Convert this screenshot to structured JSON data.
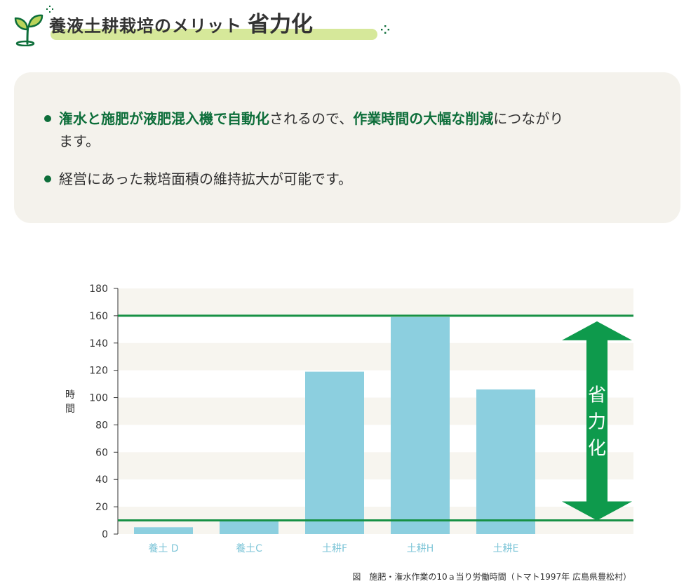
{
  "header": {
    "title": "養液土耕栽培のメリット",
    "subtitle": "省力化",
    "icon": "sprout-icon",
    "accent_color": "#0d6e3a",
    "highlight_color": "#d6e89a"
  },
  "info": {
    "items": [
      {
        "parts": [
          {
            "text": "潅水と施肥が液肥混入機で自動化",
            "highlight": true
          },
          {
            "text": "されるので、",
            "highlight": false
          },
          {
            "text": "作業時間の大幅な削減",
            "highlight": true
          },
          {
            "text": "につながります。",
            "highlight": false
          }
        ]
      },
      {
        "parts": [
          {
            "text": "経営にあった栽培面積の維持拡大が可能です。",
            "highlight": false
          }
        ]
      }
    ]
  },
  "chart_data": {
    "type": "bar",
    "categories": [
      "養土 D",
      "養土C",
      "土耕F",
      "土耕H",
      "土耕E"
    ],
    "values": [
      5,
      10,
      119,
      159,
      106
    ],
    "ylabel": "時間",
    "ylim": [
      0,
      180
    ],
    "yticks": [
      0,
      20,
      40,
      60,
      80,
      100,
      120,
      140,
      160,
      180
    ],
    "reference_lines": [
      10,
      160
    ],
    "arrow_label": "省力化",
    "bar_color": "#8ccfdf",
    "line_color": "#179145",
    "arrow_color": "#0e9a4c",
    "band_color": "#f7f5ef",
    "grid": "banded",
    "caption": "図　施肥・潅水作業の10ａ当り労働時間（トマト1997年 広島県豊松村）"
  }
}
